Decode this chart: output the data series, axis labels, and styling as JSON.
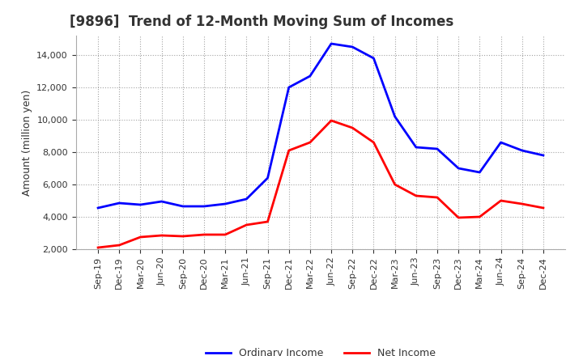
{
  "title": "[9896]  Trend of 12-Month Moving Sum of Incomes",
  "ylabel": "Amount (million yen)",
  "x_labels": [
    "Sep-19",
    "Dec-19",
    "Mar-20",
    "Jun-20",
    "Sep-20",
    "Dec-20",
    "Mar-21",
    "Jun-21",
    "Sep-21",
    "Dec-21",
    "Mar-22",
    "Jun-22",
    "Sep-22",
    "Dec-22",
    "Mar-23",
    "Jun-23",
    "Sep-23",
    "Dec-23",
    "Mar-24",
    "Jun-24",
    "Sep-24",
    "Dec-24"
  ],
  "ordinary_income": [
    4550,
    4850,
    4750,
    4950,
    4650,
    4650,
    4800,
    5100,
    6400,
    12000,
    12700,
    14700,
    14500,
    13800,
    10200,
    8300,
    8200,
    7000,
    6750,
    8600,
    8100,
    7800
  ],
  "net_income": [
    2100,
    2250,
    2750,
    2850,
    2800,
    2900,
    2900,
    3500,
    3700,
    8100,
    8600,
    9950,
    9500,
    8600,
    6000,
    5300,
    5200,
    3950,
    4000,
    5000,
    4800,
    4550
  ],
  "ordinary_color": "#0000FF",
  "net_color": "#FF0000",
  "ylim_min": 2000,
  "ylim_max": 15200,
  "yticks": [
    2000,
    4000,
    6000,
    8000,
    10000,
    12000,
    14000
  ],
  "background_color": "#FFFFFF",
  "grid_color": "#999999",
  "title_fontsize": 12,
  "title_color": "#333333",
  "axis_label_fontsize": 9,
  "tick_fontsize": 8,
  "legend_fontsize": 9,
  "line_width": 2.0
}
